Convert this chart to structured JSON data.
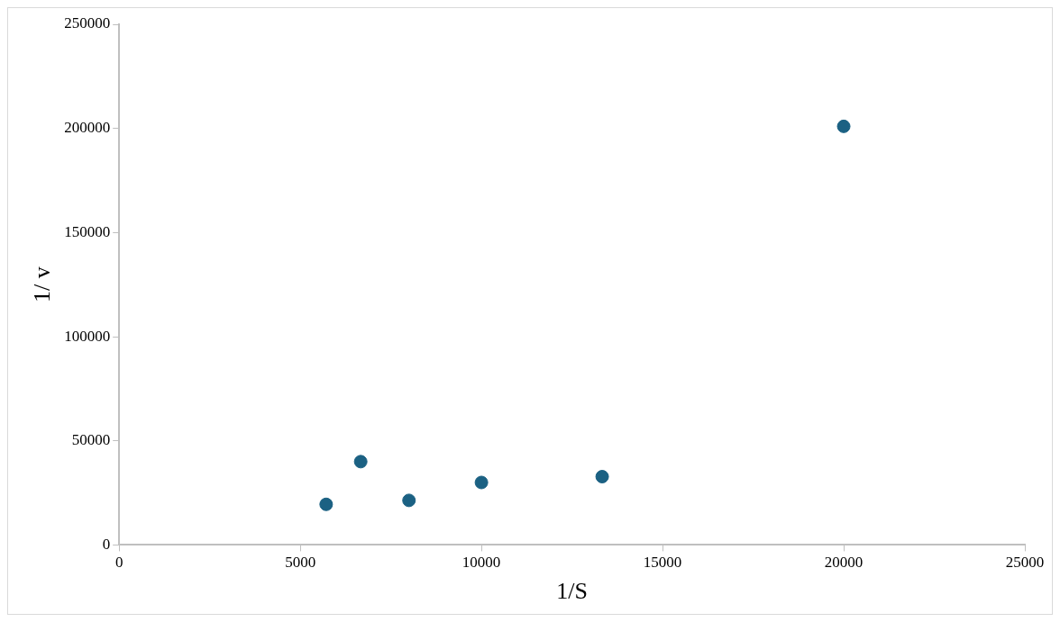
{
  "chart_data": {
    "type": "scatter",
    "xlabel": "1/S",
    "ylabel": "1/ v",
    "x": [
      5714,
      6667,
      8000,
      10000,
      13333,
      20000
    ],
    "series": [
      {
        "color": "#1b6183",
        "values": [
          19500,
          40000,
          21400,
          30000,
          32800,
          201000
        ]
      }
    ],
    "xlim": [
      0,
      25000
    ],
    "xticks": [
      0,
      5000,
      10000,
      15000,
      20000,
      25000
    ],
    "ylim": [
      0,
      250000
    ],
    "yticks": [
      0,
      50000,
      100000,
      150000,
      200000,
      250000
    ],
    "grid": false,
    "legend": false,
    "marker": "circle"
  }
}
